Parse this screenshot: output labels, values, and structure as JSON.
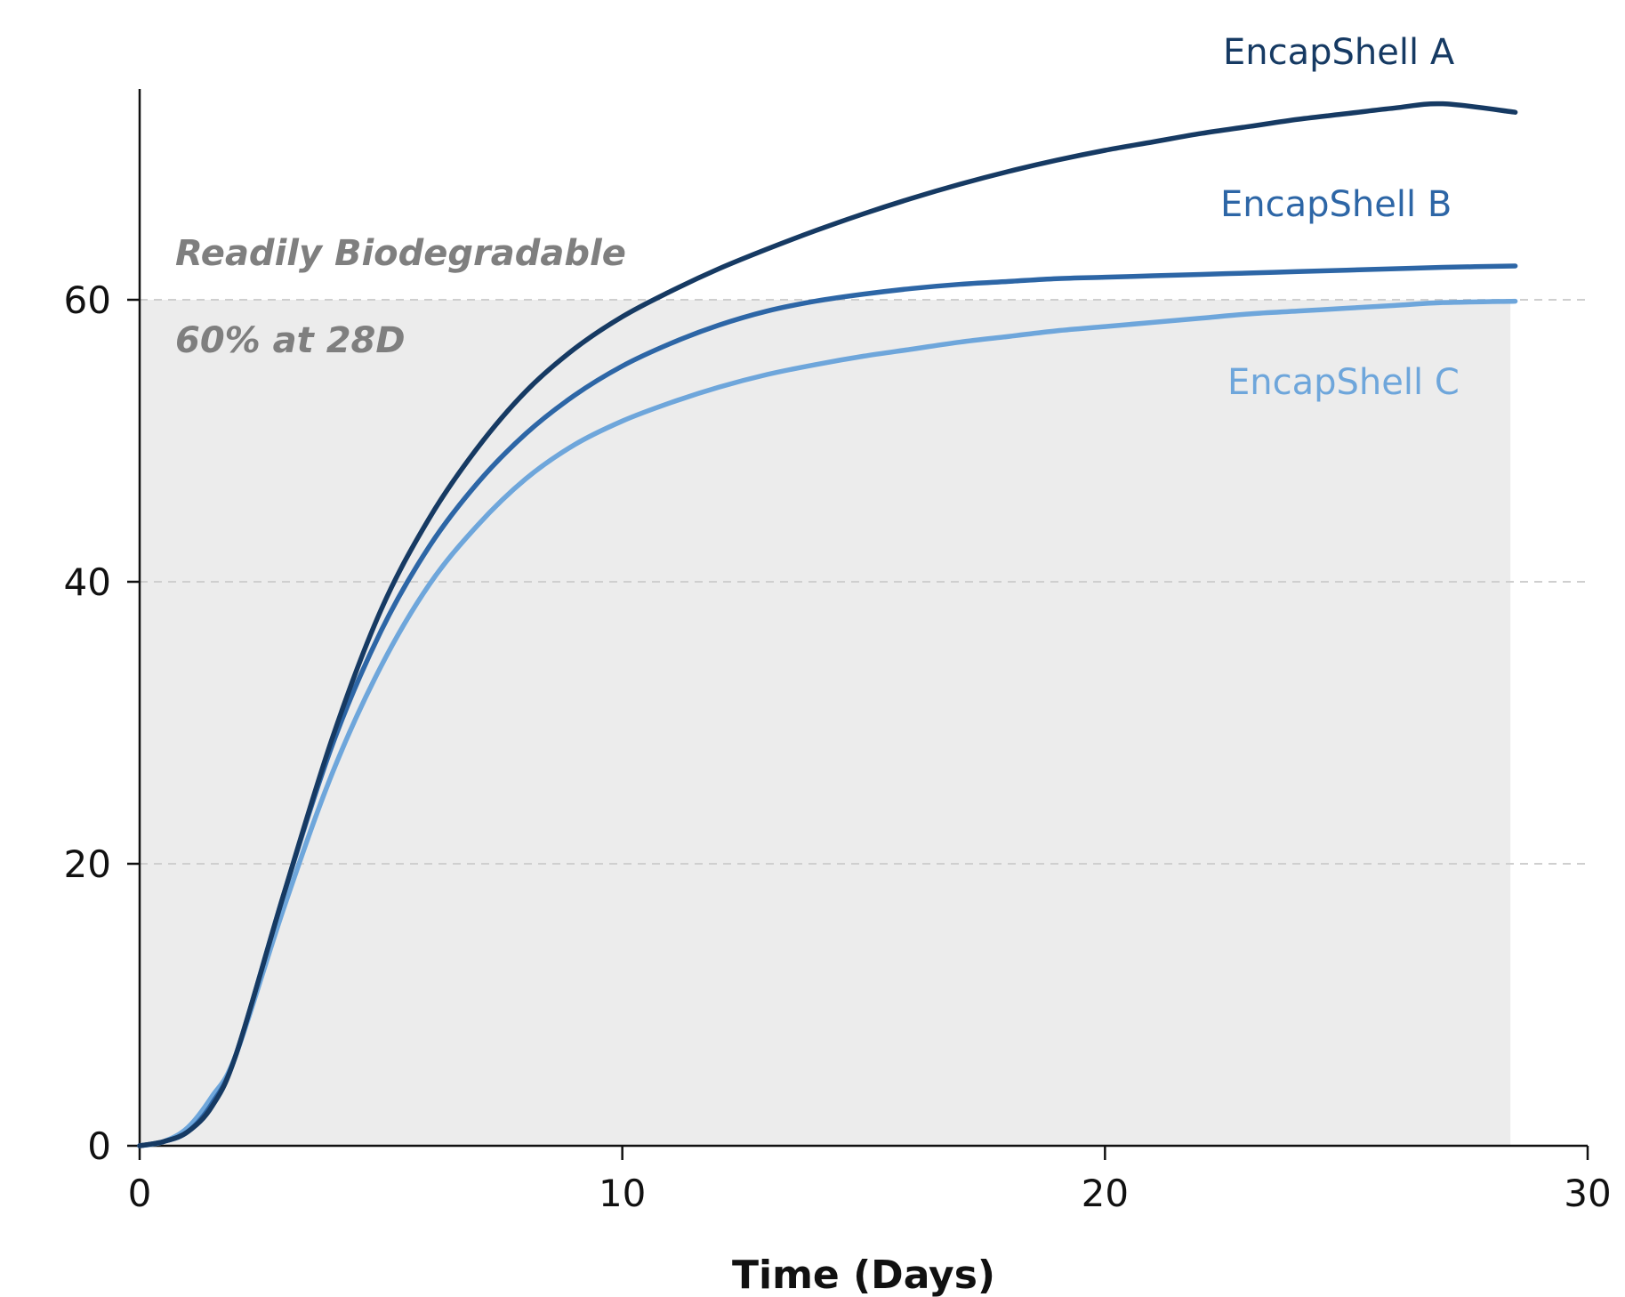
{
  "chart_data": {
    "type": "line",
    "xlabel": "Time (Days)",
    "ylabel": "",
    "xlim": [
      0,
      30
    ],
    "ylim": [
      0,
      75
    ],
    "x_ticks": [
      0,
      10,
      20,
      30
    ],
    "y_ticks": [
      0,
      20,
      40,
      60
    ],
    "grid": "horizontal dashed at y ticks",
    "shaded_region": {
      "x_range": [
        0,
        28.4
      ],
      "y_range": [
        0,
        60
      ],
      "label_line1": "Readily Biodegradable",
      "label_line2": "60% at 28D",
      "color": "#ececec"
    },
    "series": [
      {
        "name": "EncapShell A",
        "color": "#163a63",
        "x": [
          0,
          0.5,
          1,
          1.5,
          2,
          3,
          4,
          5,
          6,
          7,
          8,
          9,
          10,
          11,
          12,
          13,
          14,
          15,
          16,
          17,
          18,
          19,
          20,
          21,
          22,
          23,
          24,
          25,
          26,
          27,
          28.5
        ],
        "y": [
          0,
          0.3,
          1,
          2.8,
          6.5,
          18,
          29,
          38,
          44.5,
          49.5,
          53.5,
          56.5,
          58.8,
          60.6,
          62.2,
          63.6,
          64.9,
          66.1,
          67.2,
          68.2,
          69.1,
          69.9,
          70.6,
          71.2,
          71.8,
          72.3,
          72.8,
          73.2,
          73.6,
          73.9,
          73.3
        ]
      },
      {
        "name": "EncapShell B",
        "color": "#2d66a6",
        "x": [
          0,
          0.5,
          1,
          1.5,
          2,
          3,
          4,
          5,
          6,
          7,
          8,
          9,
          10,
          11,
          12,
          13,
          14,
          15,
          16,
          17,
          18,
          19,
          20,
          21,
          22,
          23,
          24,
          25,
          26,
          27,
          28.5
        ],
        "y": [
          0,
          0.3,
          1,
          3,
          6.5,
          18,
          28.5,
          36.5,
          42.5,
          47,
          50.5,
          53.2,
          55.3,
          56.9,
          58.2,
          59.2,
          59.9,
          60.4,
          60.8,
          61.1,
          61.3,
          61.5,
          61.6,
          61.7,
          61.8,
          61.9,
          62,
          62.1,
          62.2,
          62.3,
          62.4
        ]
      },
      {
        "name": "EncapShell C",
        "color": "#6ea6db",
        "x": [
          0,
          0.5,
          1,
          1.5,
          2,
          3,
          4,
          5,
          6,
          7,
          8,
          9,
          10,
          11,
          12,
          13,
          14,
          15,
          16,
          17,
          18,
          19,
          20,
          21,
          22,
          23,
          24,
          25,
          26,
          27,
          28.5
        ],
        "y": [
          0,
          0.3,
          1.3,
          3.5,
          6.5,
          17,
          26.5,
          34,
          39.8,
          44,
          47.3,
          49.7,
          51.4,
          52.7,
          53.8,
          54.7,
          55.4,
          56,
          56.5,
          57,
          57.4,
          57.8,
          58.1,
          58.4,
          58.7,
          59,
          59.2,
          59.4,
          59.6,
          59.8,
          59.9
        ]
      }
    ]
  }
}
